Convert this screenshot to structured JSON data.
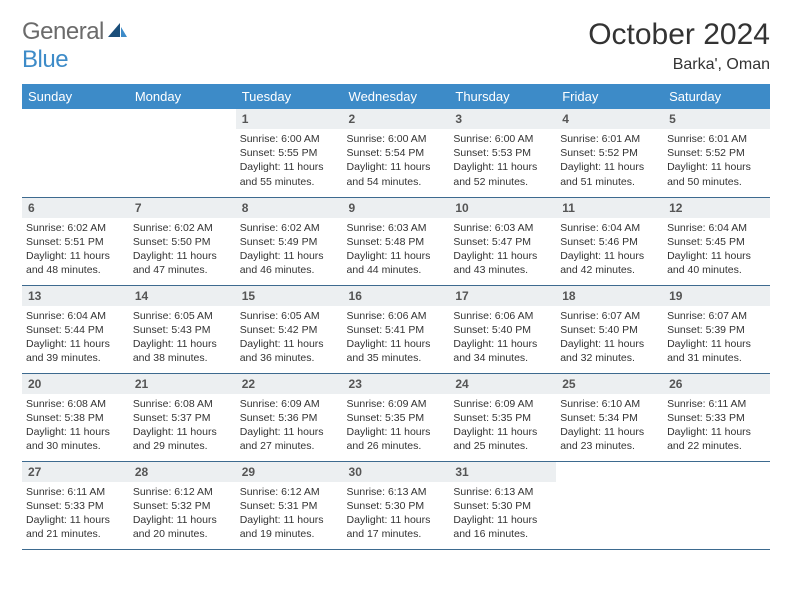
{
  "logo": {
    "word1": "General",
    "word2": "Blue"
  },
  "title": {
    "month": "October 2024",
    "location": "Barka', Oman"
  },
  "colors": {
    "header_bg": "#3d8bc8",
    "header_text": "#ffffff",
    "daynum_bg": "#eceff1",
    "border": "#3d6a8f",
    "logo_gray": "#6b6b6b",
    "logo_blue": "#3d8bc8"
  },
  "day_headers": [
    "Sunday",
    "Monday",
    "Tuesday",
    "Wednesday",
    "Thursday",
    "Friday",
    "Saturday"
  ],
  "weeks": [
    [
      {
        "empty": true
      },
      {
        "empty": true
      },
      {
        "n": "1",
        "sr": "Sunrise: 6:00 AM",
        "ss": "Sunset: 5:55 PM",
        "dl": "Daylight: 11 hours and 55 minutes."
      },
      {
        "n": "2",
        "sr": "Sunrise: 6:00 AM",
        "ss": "Sunset: 5:54 PM",
        "dl": "Daylight: 11 hours and 54 minutes."
      },
      {
        "n": "3",
        "sr": "Sunrise: 6:00 AM",
        "ss": "Sunset: 5:53 PM",
        "dl": "Daylight: 11 hours and 52 minutes."
      },
      {
        "n": "4",
        "sr": "Sunrise: 6:01 AM",
        "ss": "Sunset: 5:52 PM",
        "dl": "Daylight: 11 hours and 51 minutes."
      },
      {
        "n": "5",
        "sr": "Sunrise: 6:01 AM",
        "ss": "Sunset: 5:52 PM",
        "dl": "Daylight: 11 hours and 50 minutes."
      }
    ],
    [
      {
        "n": "6",
        "sr": "Sunrise: 6:02 AM",
        "ss": "Sunset: 5:51 PM",
        "dl": "Daylight: 11 hours and 48 minutes."
      },
      {
        "n": "7",
        "sr": "Sunrise: 6:02 AM",
        "ss": "Sunset: 5:50 PM",
        "dl": "Daylight: 11 hours and 47 minutes."
      },
      {
        "n": "8",
        "sr": "Sunrise: 6:02 AM",
        "ss": "Sunset: 5:49 PM",
        "dl": "Daylight: 11 hours and 46 minutes."
      },
      {
        "n": "9",
        "sr": "Sunrise: 6:03 AM",
        "ss": "Sunset: 5:48 PM",
        "dl": "Daylight: 11 hours and 44 minutes."
      },
      {
        "n": "10",
        "sr": "Sunrise: 6:03 AM",
        "ss": "Sunset: 5:47 PM",
        "dl": "Daylight: 11 hours and 43 minutes."
      },
      {
        "n": "11",
        "sr": "Sunrise: 6:04 AM",
        "ss": "Sunset: 5:46 PM",
        "dl": "Daylight: 11 hours and 42 minutes."
      },
      {
        "n": "12",
        "sr": "Sunrise: 6:04 AM",
        "ss": "Sunset: 5:45 PM",
        "dl": "Daylight: 11 hours and 40 minutes."
      }
    ],
    [
      {
        "n": "13",
        "sr": "Sunrise: 6:04 AM",
        "ss": "Sunset: 5:44 PM",
        "dl": "Daylight: 11 hours and 39 minutes."
      },
      {
        "n": "14",
        "sr": "Sunrise: 6:05 AM",
        "ss": "Sunset: 5:43 PM",
        "dl": "Daylight: 11 hours and 38 minutes."
      },
      {
        "n": "15",
        "sr": "Sunrise: 6:05 AM",
        "ss": "Sunset: 5:42 PM",
        "dl": "Daylight: 11 hours and 36 minutes."
      },
      {
        "n": "16",
        "sr": "Sunrise: 6:06 AM",
        "ss": "Sunset: 5:41 PM",
        "dl": "Daylight: 11 hours and 35 minutes."
      },
      {
        "n": "17",
        "sr": "Sunrise: 6:06 AM",
        "ss": "Sunset: 5:40 PM",
        "dl": "Daylight: 11 hours and 34 minutes."
      },
      {
        "n": "18",
        "sr": "Sunrise: 6:07 AM",
        "ss": "Sunset: 5:40 PM",
        "dl": "Daylight: 11 hours and 32 minutes."
      },
      {
        "n": "19",
        "sr": "Sunrise: 6:07 AM",
        "ss": "Sunset: 5:39 PM",
        "dl": "Daylight: 11 hours and 31 minutes."
      }
    ],
    [
      {
        "n": "20",
        "sr": "Sunrise: 6:08 AM",
        "ss": "Sunset: 5:38 PM",
        "dl": "Daylight: 11 hours and 30 minutes."
      },
      {
        "n": "21",
        "sr": "Sunrise: 6:08 AM",
        "ss": "Sunset: 5:37 PM",
        "dl": "Daylight: 11 hours and 29 minutes."
      },
      {
        "n": "22",
        "sr": "Sunrise: 6:09 AM",
        "ss": "Sunset: 5:36 PM",
        "dl": "Daylight: 11 hours and 27 minutes."
      },
      {
        "n": "23",
        "sr": "Sunrise: 6:09 AM",
        "ss": "Sunset: 5:35 PM",
        "dl": "Daylight: 11 hours and 26 minutes."
      },
      {
        "n": "24",
        "sr": "Sunrise: 6:09 AM",
        "ss": "Sunset: 5:35 PM",
        "dl": "Daylight: 11 hours and 25 minutes."
      },
      {
        "n": "25",
        "sr": "Sunrise: 6:10 AM",
        "ss": "Sunset: 5:34 PM",
        "dl": "Daylight: 11 hours and 23 minutes."
      },
      {
        "n": "26",
        "sr": "Sunrise: 6:11 AM",
        "ss": "Sunset: 5:33 PM",
        "dl": "Daylight: 11 hours and 22 minutes."
      }
    ],
    [
      {
        "n": "27",
        "sr": "Sunrise: 6:11 AM",
        "ss": "Sunset: 5:33 PM",
        "dl": "Daylight: 11 hours and 21 minutes."
      },
      {
        "n": "28",
        "sr": "Sunrise: 6:12 AM",
        "ss": "Sunset: 5:32 PM",
        "dl": "Daylight: 11 hours and 20 minutes."
      },
      {
        "n": "29",
        "sr": "Sunrise: 6:12 AM",
        "ss": "Sunset: 5:31 PM",
        "dl": "Daylight: 11 hours and 19 minutes."
      },
      {
        "n": "30",
        "sr": "Sunrise: 6:13 AM",
        "ss": "Sunset: 5:30 PM",
        "dl": "Daylight: 11 hours and 17 minutes."
      },
      {
        "n": "31",
        "sr": "Sunrise: 6:13 AM",
        "ss": "Sunset: 5:30 PM",
        "dl": "Daylight: 11 hours and 16 minutes."
      },
      {
        "empty": true
      },
      {
        "empty": true
      }
    ]
  ]
}
